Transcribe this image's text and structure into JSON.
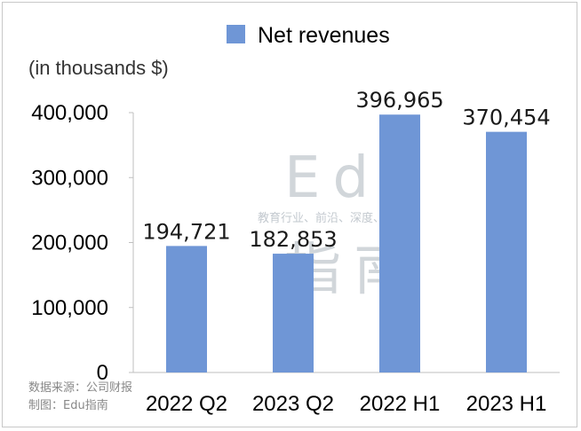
{
  "chart_data": {
    "type": "bar",
    "categories": [
      "2022 Q2",
      "2023 Q2",
      "2022 H1",
      "2023 H1"
    ],
    "series": [
      {
        "name": "Net revenues",
        "values": [
          194721,
          182853,
          396965,
          370454
        ]
      }
    ],
    "data_labels": [
      "194,721",
      "182,853",
      "396,965",
      "370,454"
    ],
    "title": "",
    "ylabel": "(in thousands $)",
    "xlabel": "",
    "ylim": [
      0,
      400000
    ],
    "yticks": [
      0,
      100000,
      200000,
      300000,
      400000
    ],
    "ytick_labels": [
      "0",
      "100,000",
      "200,000",
      "300,000",
      "400,000"
    ],
    "grid": false,
    "legend_position": "top-center",
    "bar_color": "#6f96d6"
  },
  "legend": {
    "label": "Net revenues"
  },
  "watermark": {
    "big": "Edu",
    "tagline": "教育行业、前沿、深度、独家",
    "brand": "指南"
  },
  "source": {
    "line1": "数据来源：公司财报",
    "line2": "制图：Edu指南"
  }
}
